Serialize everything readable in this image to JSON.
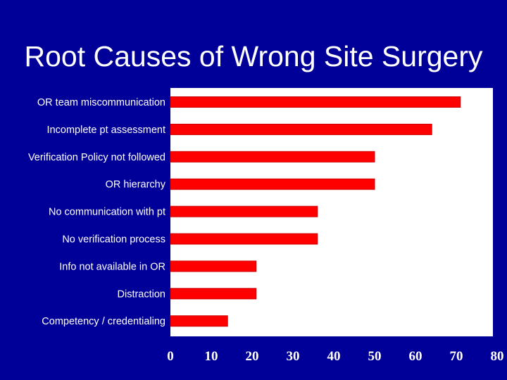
{
  "title": "Root Causes of Wrong Site Surgery",
  "colors": {
    "background": "#000099",
    "plot_background": "#ffffff",
    "bar": "#ff0000",
    "text": "#ffffff"
  },
  "chart_data": {
    "type": "bar",
    "orientation": "horizontal",
    "title": "Root Causes of Wrong Site Surgery",
    "xlabel": "",
    "ylabel": "",
    "categories": [
      "OR team miscommunication",
      "Incomplete pt assessment",
      "Verification Policy not followed",
      "OR hierarchy",
      "No communication with pt",
      "No verification process",
      "Info not available in OR",
      "Distraction",
      "Competency / credentialing"
    ],
    "values": [
      71,
      64,
      50,
      50,
      36,
      36,
      21,
      21,
      14
    ],
    "xlim": [
      0,
      80
    ],
    "xticks": [
      "0",
      "10",
      "20",
      "30",
      "40",
      "50",
      "60",
      "70",
      "80"
    ],
    "grid": false,
    "legend": "none"
  }
}
